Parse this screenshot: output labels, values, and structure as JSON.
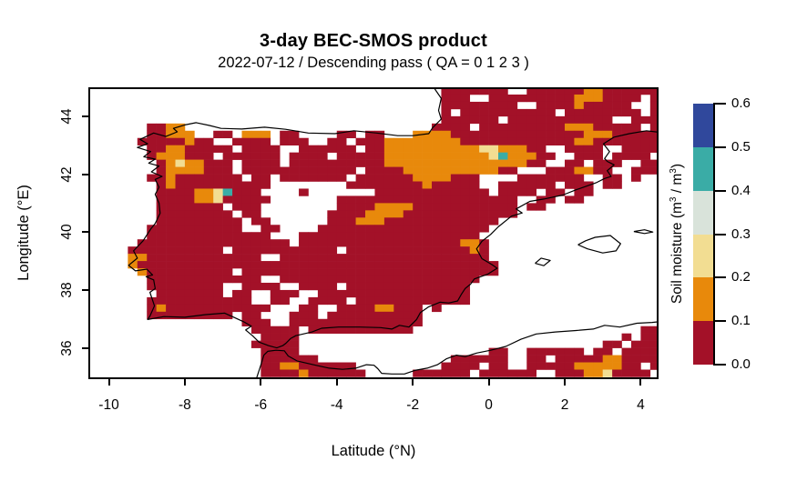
{
  "header": {
    "title": "3-day BEC-SMOS product",
    "subtitle": "2022-07-12 / Descending pass ( QA = 0 1 2 3 )"
  },
  "chart_data": {
    "type": "heatmap",
    "title": "3-day BEC-SMOS product",
    "subtitle": "2022-07-12 / Descending pass ( QA = 0 1 2 3 )",
    "xlabel": "Latitude (°N)",
    "ylabel": "Longitude (°E)",
    "xlim": [
      -10.54,
      4.47
    ],
    "ylim": [
      34.92,
      45.0
    ],
    "xtick_values": [
      -10,
      -8,
      -6,
      -4,
      -2,
      0,
      2,
      4
    ],
    "xtick_labels": [
      "-10",
      "-8",
      "-6",
      "-4",
      "-2",
      "0",
      "2",
      "4"
    ],
    "ytick_values": [
      44,
      42,
      40,
      38,
      36
    ],
    "ytick_labels": [
      "44",
      "42",
      "40",
      "38",
      "36"
    ],
    "grid": "off",
    "colorbar": {
      "label_prefix": "Soil moisture (m",
      "label_sup1": "3",
      "label_mid": " / m",
      "label_sup2": "3",
      "label_suffix": ")",
      "tick_labels_top_to_bottom": [
        "0.6",
        "0.5",
        "0.4",
        "0.3",
        "0.2",
        "0.1",
        "0.0"
      ],
      "bins_top_to_bottom": [
        {
          "value_range": [
            0.5,
            0.6
          ],
          "color": "#30489C"
        },
        {
          "value_range": [
            0.4,
            0.5
          ],
          "color": "#3AACA6"
        },
        {
          "value_range": [
            0.3,
            0.4
          ],
          "color": "#D9E3DA"
        },
        {
          "value_range": [
            0.2,
            0.3
          ],
          "color": "#F2DD92"
        },
        {
          "value_range": [
            0.1,
            0.2
          ],
          "color": "#E8890B"
        },
        {
          "value_range": [
            0.0,
            0.1
          ],
          "color": "#A31128"
        }
      ]
    },
    "raster": {
      "lon_start": -10.5,
      "lat_start": 45.0,
      "cell_size_deg": 0.25,
      "classes": {
        "r": "#A31128",
        "o": "#E8890B",
        "t": "#F2DD92",
        "g": "#D9E3DA",
        "c": "#3AACA6",
        "b": "#30489C"
      },
      "class_values": {
        "r": "0.0-0.1",
        "o": "0.1-0.2",
        "t": "0.2-0.3",
        "g": "0.3-0.4",
        "c": "0.4-0.5",
        "b": "0.5-0.6",
        ".": "no data"
      },
      "rows": [
        ".....................................rrrrrrr..rrrrrroorrrrrr",
        ".....................................rrr..rrrrrrrrrooorrrr.r",
        ".....................................rrrrrrrr..rrrrorrrrr..r",
        ".....................................r.rrrrrrrrrr.rrrrrrrr.r",
        ".....................................rrrrrr.rrrrrrrrrrr..rrr",
        "......rroo..........................rrrr.rrrrrrrrrooorrrrr.r",
        "......rrooo..rr.ooo.rr....rr.rr...oooorrrrrrrrrrrrrrooorrrrr",
        ".....rrrrrorr..rrrr.rrr..rr.rrroooooooorrrrrrrrrrrroorrrrrrr",
        "......rroorrrrr.rrrr..rrrrrr.rroooooooooottooorr..rrrr..rrrr",
        "......rooorrr.rrrrrr.rrrr.rrrrroooooooooootcooorr..rrr.rrrr",
        ".......rotoorrr.rrrr.rrrrrrrrrrooooooooooooooorr..rr.rrr..rrr",
        ".......roooorrr.rrrrrrrrrrrr.rrrroooooooooorr...rrroorr..rrr.",
        "......rrorrrrrrr.rr.rrrrrrr.rrrrrroooorrr....rrrrrrr..rr.r..",
        ".......rorrrrrrrrrr........rrrrrrrrorrrrr..rrrrrr.rrr.rr....",
        ".......rrrrootcrrr....r.......rrrrrrrrrrrr.rrrr.rr.rr.......",
        ".......rrrrootrrrrr.......rrrrrrrrrrrrrrrrrrr..rr.rr........",
        ".......rrrrrrr.rrr........rrrroooorrrrrrrrrrr.rr............",
        ".......rrrrrrrr.rr.......rrrroooorrrrrrrrrrrr...............",
        ".......rrrrrrrrr.rr......rrrooorrrrrrrrrrrr.................",
        "......rrrrrrrrrr..rr....rrrrrrrrrrrrrrrrrr..................",
        "......rrrrrrrrrrrrr...rrrrrrrrrrrrrrrrrrr...................",
        ".....rrrrrrrrrrrrrrrr.rrrrrrrrrrrrrrrrroor..................",
        "....rrrrrrrrrr.rrrrrrrrrrr.rrrrrrrrrrrrror..................",
        "....oorrrrrrrrrrrr..rrrrrrrrrrrrrrrrrrrrrr..................",
        "....orrrrrrrrrrrrrrrrrrrrrrrrrrrrrrrrrrrrrr.................",
        ".....orrrrrrrrr.rrrrrrrrrrrrrrrrrrrrrrrrrrr.................",
        "......rrrrrrrrrrrr..rrrrrrrrrrrrrrrrrrrrr...................",
        "......rrrrrrrr..rrrr..rrrr.rrrrrrrrrrrrr....................",
        ".......rrrrrrr.rr..rrr..rrrrrrrrrrrrrrrr....................",
        "......rrrrrrrrrrr..rr..rrrr.rrrrrrrrrrrr....................",
        "......rorrrrrrrrrrr...rr..rrrroorrr.r.......................",
        "......rrrrrrrrr.rr...rrr.rrrrrrrrrr.........................",
        "................rrr..rrrrrrrrrrrrrr.........................",
        ".................rrrrr.rrrrrrrrrrr........................rr",
        "..................rrrr..................................r.rr",
        ".................rrrrr................................rr.rrr",
        "..................rrrr....................rr..rrrrrr.rr.rrrr",
        "..................rrrrrr..............rrrrrr..rr.rrrrroorrrr",
        "..................rroorrrrrr.........rrrr.rr..rrrrrooooorr.r",
        "..................rrrrorrrrrr.....rrrrrr.rrrrrr..rrrootrrrr"
      ]
    },
    "coastlines": {
      "iberia_france": [
        [
          -1.45,
          45.0
        ],
        [
          -1.25,
          44.62
        ],
        [
          -1.32,
          44.2
        ],
        [
          -1.25,
          43.9
        ],
        [
          -1.48,
          43.6
        ],
        [
          -1.58,
          43.4
        ],
        [
          -2.0,
          43.33
        ],
        [
          -2.4,
          43.33
        ],
        [
          -2.95,
          43.42
        ],
        [
          -3.55,
          43.5
        ],
        [
          -4.05,
          43.4
        ],
        [
          -4.75,
          43.42
        ],
        [
          -5.35,
          43.55
        ],
        [
          -5.9,
          43.62
        ],
        [
          -6.5,
          43.56
        ],
        [
          -7.05,
          43.58
        ],
        [
          -7.35,
          43.68
        ],
        [
          -7.7,
          43.78
        ],
        [
          -8.0,
          43.7
        ],
        [
          -8.3,
          43.58
        ],
        [
          -8.2,
          43.46
        ],
        [
          -8.5,
          43.3
        ],
        [
          -8.82,
          43.42
        ],
        [
          -9.18,
          43.2
        ],
        [
          -8.98,
          43.05
        ],
        [
          -9.25,
          42.92
        ],
        [
          -8.9,
          42.78
        ],
        [
          -9.08,
          42.6
        ],
        [
          -8.78,
          42.52
        ],
        [
          -8.95,
          42.38
        ],
        [
          -8.68,
          42.28
        ],
        [
          -8.88,
          42.08
        ],
        [
          -8.6,
          41.92
        ],
        [
          -8.78,
          41.82
        ],
        [
          -8.68,
          41.55
        ],
        [
          -8.78,
          41.3
        ],
        [
          -8.68,
          41.0
        ],
        [
          -8.65,
          40.65
        ],
        [
          -8.78,
          40.3
        ],
        [
          -8.9,
          40.1
        ],
        [
          -9.1,
          39.7
        ],
        [
          -9.35,
          39.35
        ],
        [
          -9.25,
          39.1
        ],
        [
          -9.48,
          38.85
        ],
        [
          -9.3,
          38.66
        ],
        [
          -9.0,
          38.72
        ],
        [
          -8.85,
          38.52
        ],
        [
          -9.02,
          38.46
        ],
        [
          -8.82,
          38.35
        ],
        [
          -8.78,
          38.05
        ],
        [
          -8.92,
          37.92
        ],
        [
          -8.8,
          37.45
        ],
        [
          -8.92,
          37.1
        ],
        [
          -8.98,
          36.98
        ],
        [
          -8.55,
          37.08
        ],
        [
          -8.0,
          37.06
        ],
        [
          -7.45,
          37.15
        ],
        [
          -6.95,
          37.2
        ],
        [
          -6.45,
          36.9
        ],
        [
          -6.25,
          36.75
        ],
        [
          -6.4,
          36.62
        ],
        [
          -6.22,
          36.42
        ],
        [
          -6.05,
          36.2
        ],
        [
          -5.8,
          36.08
        ],
        [
          -5.58,
          36.0
        ],
        [
          -5.42,
          36.08
        ],
        [
          -5.34,
          36.16
        ],
        [
          -5.22,
          36.32
        ],
        [
          -5.08,
          36.42
        ],
        [
          -4.65,
          36.55
        ],
        [
          -4.4,
          36.68
        ],
        [
          -3.95,
          36.72
        ],
        [
          -3.4,
          36.72
        ],
        [
          -2.85,
          36.7
        ],
        [
          -2.55,
          36.65
        ],
        [
          -2.35,
          36.78
        ],
        [
          -2.1,
          36.72
        ],
        [
          -1.9,
          36.98
        ],
        [
          -1.8,
          37.22
        ],
        [
          -1.58,
          37.42
        ],
        [
          -1.28,
          37.58
        ],
        [
          -1.05,
          37.55
        ],
        [
          -0.82,
          37.62
        ],
        [
          -0.72,
          37.85
        ],
        [
          -0.62,
          38.05
        ],
        [
          -0.48,
          38.2
        ],
        [
          -0.38,
          38.38
        ],
        [
          -0.02,
          38.55
        ],
        [
          0.22,
          38.75
        ],
        [
          0.08,
          38.88
        ],
        [
          -0.18,
          39.08
        ],
        [
          -0.32,
          39.42
        ],
        [
          -0.18,
          39.68
        ],
        [
          0.05,
          39.92
        ],
        [
          0.25,
          40.18
        ],
        [
          0.6,
          40.55
        ],
        [
          0.88,
          40.66
        ],
        [
          0.72,
          40.8
        ],
        [
          1.08,
          41.06
        ],
        [
          1.45,
          41.14
        ],
        [
          1.95,
          41.28
        ],
        [
          2.3,
          41.46
        ],
        [
          2.82,
          41.7
        ],
        [
          3.05,
          41.85
        ],
        [
          3.22,
          41.92
        ],
        [
          3.12,
          42.12
        ],
        [
          3.3,
          42.32
        ],
        [
          3.12,
          42.44
        ],
        [
          3.05,
          42.54
        ],
        [
          3.18,
          42.78
        ],
        [
          3.02,
          43.05
        ],
        [
          3.3,
          43.28
        ],
        [
          3.7,
          43.4
        ],
        [
          4.15,
          43.5
        ],
        [
          4.47,
          43.45
        ]
      ],
      "africa": [
        [
          -6.12,
          34.92
        ],
        [
          -6.0,
          35.4
        ],
        [
          -5.92,
          35.75
        ],
        [
          -5.82,
          35.88
        ],
        [
          -5.6,
          35.92
        ],
        [
          -5.38,
          35.9
        ],
        [
          -5.28,
          35.72
        ],
        [
          -5.05,
          35.55
        ],
        [
          -4.62,
          35.42
        ],
        [
          -4.2,
          35.3
        ],
        [
          -3.85,
          35.26
        ],
        [
          -3.5,
          35.3
        ],
        [
          -3.22,
          35.42
        ],
        [
          -3.02,
          35.4
        ],
        [
          -2.92,
          35.28
        ],
        [
          -2.82,
          35.12
        ],
        [
          -2.55,
          35.1
        ],
        [
          -2.22,
          35.1
        ],
        [
          -1.95,
          35.22
        ],
        [
          -1.62,
          35.3
        ],
        [
          -1.35,
          35.42
        ],
        [
          -1.12,
          35.62
        ],
        [
          -0.85,
          35.75
        ],
        [
          -0.62,
          35.7
        ],
        [
          -0.32,
          35.82
        ],
        [
          0.05,
          35.92
        ],
        [
          0.45,
          36.05
        ],
        [
          0.85,
          36.3
        ],
        [
          1.25,
          36.48
        ],
        [
          1.75,
          36.55
        ],
        [
          2.3,
          36.6
        ],
        [
          2.75,
          36.65
        ],
        [
          3.05,
          36.78
        ],
        [
          3.45,
          36.72
        ],
        [
          3.9,
          36.85
        ],
        [
          4.3,
          36.88
        ],
        [
          4.47,
          36.9
        ]
      ],
      "mallorca": [
        [
          2.35,
          39.56
        ],
        [
          2.6,
          39.42
        ],
        [
          3.0,
          39.28
        ],
        [
          3.35,
          39.35
        ],
        [
          3.47,
          39.6
        ],
        [
          3.2,
          39.88
        ],
        [
          2.8,
          39.82
        ],
        [
          2.55,
          39.7
        ],
        [
          2.35,
          39.56
        ]
      ],
      "menorca": [
        [
          3.82,
          40.02
        ],
        [
          4.1,
          39.95
        ],
        [
          4.32,
          40.0
        ],
        [
          4.1,
          40.08
        ],
        [
          3.82,
          40.02
        ]
      ],
      "ibiza": [
        [
          1.22,
          38.92
        ],
        [
          1.45,
          38.84
        ],
        [
          1.62,
          39.02
        ],
        [
          1.38,
          39.1
        ],
        [
          1.22,
          38.92
        ]
      ]
    }
  },
  "layout_colors": {
    "background": "#ffffff",
    "frame": "#000000",
    "coastline": "#000000"
  }
}
